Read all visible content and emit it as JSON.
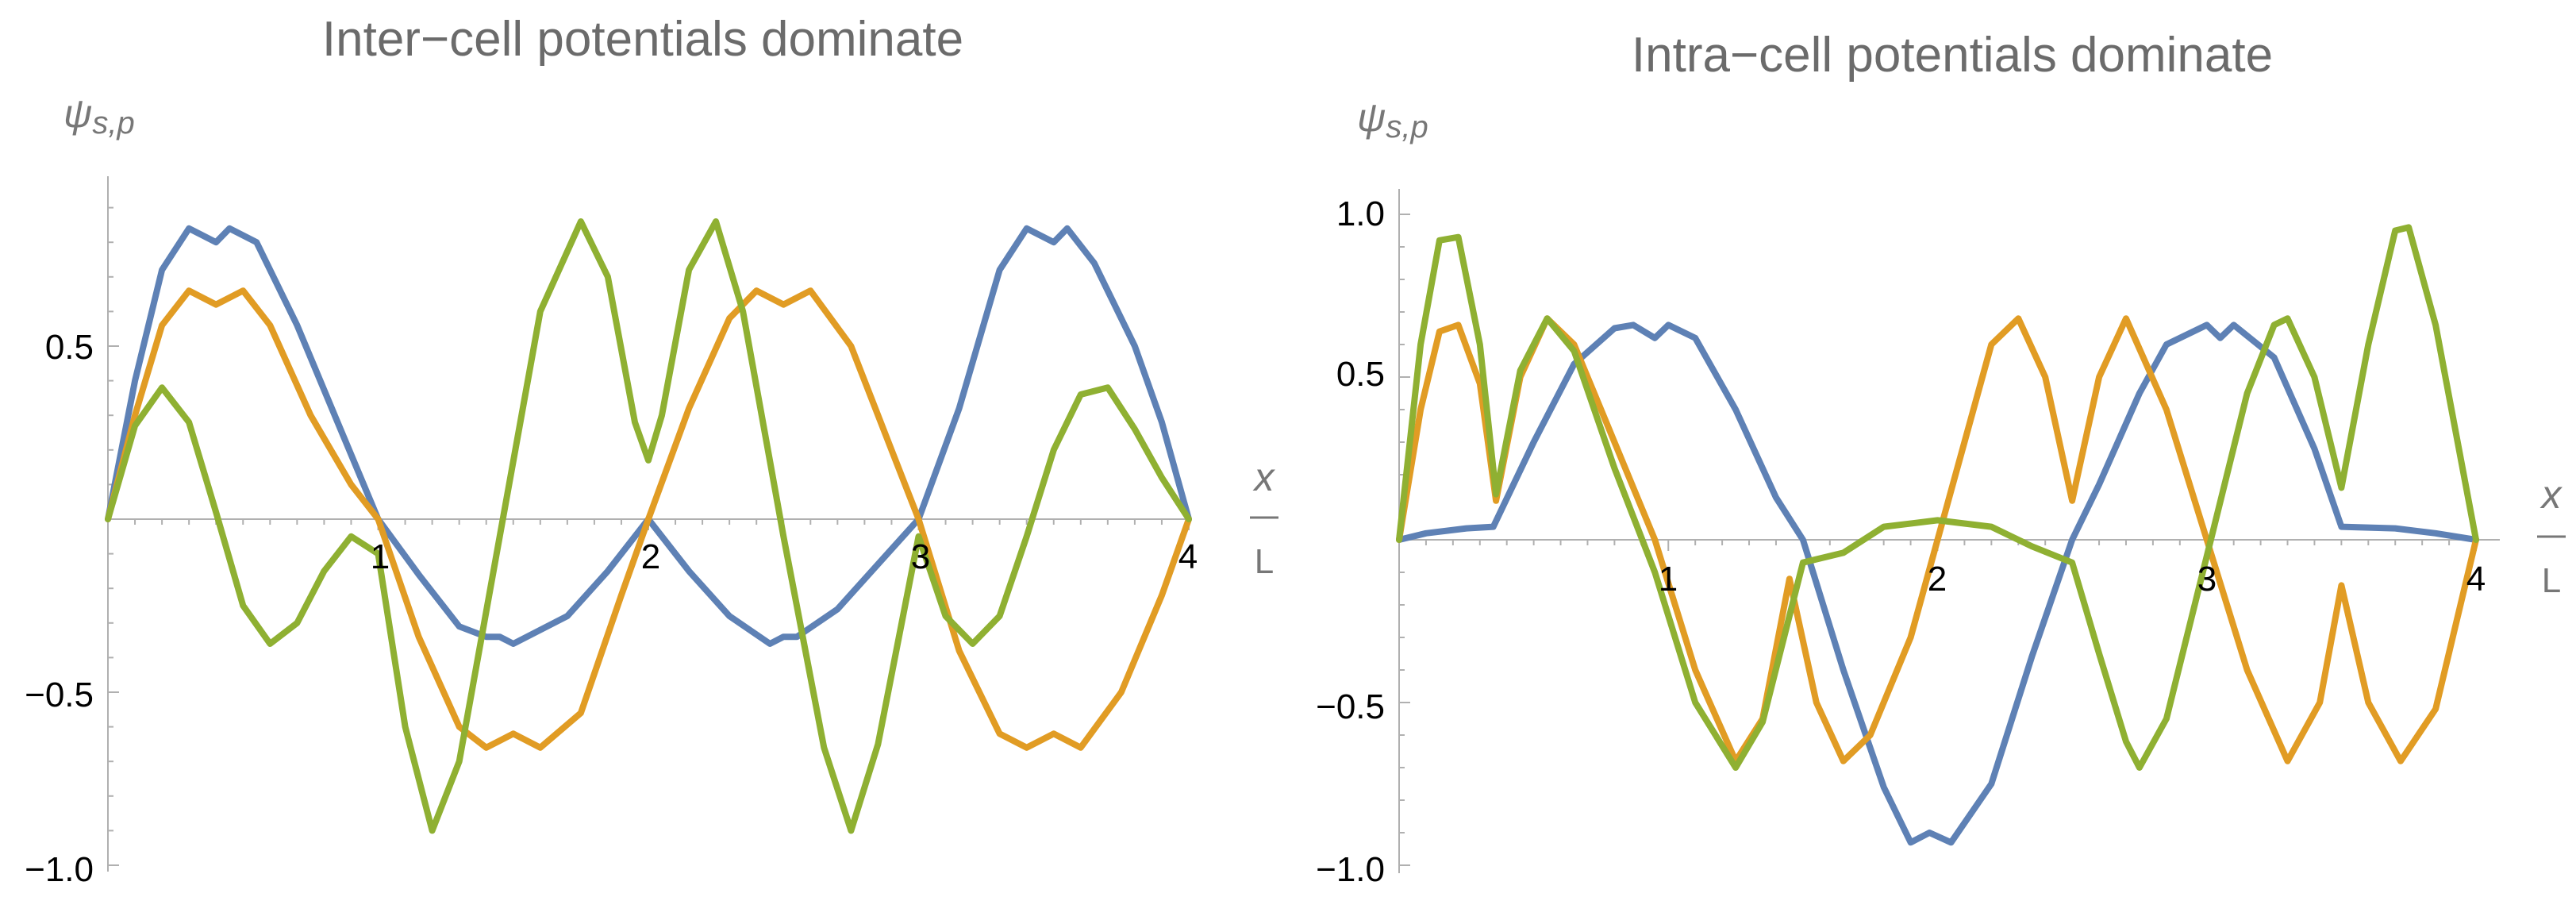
{
  "chart_data": [
    {
      "type": "line",
      "title": "Inter−cell potentials dominate",
      "ylabel": "ψs,p",
      "ylabel_base": "ψ",
      "ylabel_sub": "s,p",
      "xlabel_num": "x",
      "xlabel_den": "L",
      "xlim": [
        0,
        4
      ],
      "ylim": [
        -1.0,
        1.0
      ],
      "x_ticks": [
        {
          "value": 1,
          "label": "1"
        },
        {
          "value": 2,
          "label": "2"
        },
        {
          "value": 3,
          "label": "3"
        },
        {
          "value": 4,
          "label": "4"
        }
      ],
      "y_ticks": [
        {
          "value": 0.5,
          "label": "0.5"
        },
        {
          "value": -0.5,
          "label": "−0.5"
        },
        {
          "value": -1.0,
          "label": "−1.0"
        }
      ],
      "grid": false,
      "series": [
        {
          "color": "#5e81b5",
          "points": [
            [
              0,
              0
            ],
            [
              0.1,
              0.4
            ],
            [
              0.2,
              0.72
            ],
            [
              0.3,
              0.84
            ],
            [
              0.4,
              0.8
            ],
            [
              0.45,
              0.84
            ],
            [
              0.55,
              0.8
            ],
            [
              0.7,
              0.56
            ],
            [
              0.85,
              0.28
            ],
            [
              1.0,
              0.0
            ],
            [
              1.15,
              -0.16
            ],
            [
              1.3,
              -0.31
            ],
            [
              1.4,
              -0.34
            ],
            [
              1.45,
              -0.34
            ],
            [
              1.5,
              -0.36
            ],
            [
              1.7,
              -0.28
            ],
            [
              1.85,
              -0.15
            ],
            [
              2.0,
              0.0
            ],
            [
              2.15,
              -0.15
            ],
            [
              2.3,
              -0.28
            ],
            [
              2.45,
              -0.36
            ],
            [
              2.5,
              -0.34
            ],
            [
              2.55,
              -0.34
            ],
            [
              2.7,
              -0.26
            ],
            [
              2.85,
              -0.13
            ],
            [
              3.0,
              0.0
            ],
            [
              3.15,
              0.32
            ],
            [
              3.3,
              0.72
            ],
            [
              3.4,
              0.84
            ],
            [
              3.5,
              0.8
            ],
            [
              3.55,
              0.84
            ],
            [
              3.65,
              0.74
            ],
            [
              3.8,
              0.5
            ],
            [
              3.9,
              0.28
            ],
            [
              4.0,
              0.0
            ]
          ]
        },
        {
          "color": "#e19c24",
          "points": [
            [
              0,
              0
            ],
            [
              0.1,
              0.3
            ],
            [
              0.2,
              0.56
            ],
            [
              0.3,
              0.66
            ],
            [
              0.4,
              0.62
            ],
            [
              0.5,
              0.66
            ],
            [
              0.6,
              0.56
            ],
            [
              0.75,
              0.3
            ],
            [
              0.9,
              0.1
            ],
            [
              1.0,
              0.0
            ],
            [
              1.15,
              -0.34
            ],
            [
              1.3,
              -0.6
            ],
            [
              1.4,
              -0.66
            ],
            [
              1.5,
              -0.62
            ],
            [
              1.6,
              -0.66
            ],
            [
              1.75,
              -0.56
            ],
            [
              1.9,
              -0.22
            ],
            [
              2.0,
              0.0
            ],
            [
              2.15,
              0.32
            ],
            [
              2.3,
              0.58
            ],
            [
              2.4,
              0.66
            ],
            [
              2.5,
              0.62
            ],
            [
              2.6,
              0.66
            ],
            [
              2.75,
              0.5
            ],
            [
              2.9,
              0.2
            ],
            [
              3.0,
              0.0
            ],
            [
              3.15,
              -0.38
            ],
            [
              3.3,
              -0.62
            ],
            [
              3.4,
              -0.66
            ],
            [
              3.5,
              -0.62
            ],
            [
              3.6,
              -0.66
            ],
            [
              3.75,
              -0.5
            ],
            [
              3.9,
              -0.22
            ],
            [
              4.0,
              0.0
            ]
          ]
        },
        {
          "color": "#8fb032",
          "points": [
            [
              0,
              0
            ],
            [
              0.1,
              0.27
            ],
            [
              0.2,
              0.38
            ],
            [
              0.3,
              0.28
            ],
            [
              0.4,
              0.02
            ],
            [
              0.5,
              -0.25
            ],
            [
              0.6,
              -0.36
            ],
            [
              0.7,
              -0.3
            ],
            [
              0.8,
              -0.15
            ],
            [
              0.9,
              -0.05
            ],
            [
              1.0,
              -0.1
            ],
            [
              1.1,
              -0.6
            ],
            [
              1.2,
              -0.9
            ],
            [
              1.3,
              -0.7
            ],
            [
              1.45,
              -0.05
            ],
            [
              1.6,
              0.6
            ],
            [
              1.75,
              0.86
            ],
            [
              1.85,
              0.7
            ],
            [
              1.95,
              0.28
            ],
            [
              2.0,
              0.17
            ],
            [
              2.05,
              0.3
            ],
            [
              2.15,
              0.72
            ],
            [
              2.25,
              0.86
            ],
            [
              2.35,
              0.6
            ],
            [
              2.5,
              -0.05
            ],
            [
              2.65,
              -0.66
            ],
            [
              2.75,
              -0.9
            ],
            [
              2.85,
              -0.65
            ],
            [
              3.0,
              -0.05
            ],
            [
              3.1,
              -0.28
            ],
            [
              3.2,
              -0.36
            ],
            [
              3.3,
              -0.28
            ],
            [
              3.4,
              -0.05
            ],
            [
              3.5,
              0.2
            ],
            [
              3.6,
              0.36
            ],
            [
              3.7,
              0.38
            ],
            [
              3.8,
              0.26
            ],
            [
              3.9,
              0.12
            ],
            [
              4.0,
              0.0
            ]
          ]
        }
      ]
    },
    {
      "type": "line",
      "title": "Intra−cell potentials dominate",
      "ylabel": "ψs,p",
      "ylabel_base": "ψ",
      "ylabel_sub": "s,p",
      "xlabel_num": "x",
      "xlabel_den": "L",
      "xlim": [
        0,
        4
      ],
      "ylim": [
        -1.0,
        1.0
      ],
      "x_ticks": [
        {
          "value": 1,
          "label": "1"
        },
        {
          "value": 2,
          "label": "2"
        },
        {
          "value": 3,
          "label": "3"
        },
        {
          "value": 4,
          "label": "4"
        }
      ],
      "y_ticks": [
        {
          "value": 1.0,
          "label": "1.0"
        },
        {
          "value": 0.5,
          "label": "0.5"
        },
        {
          "value": -0.5,
          "label": "−0.5"
        },
        {
          "value": -1.0,
          "label": "−1.0"
        }
      ],
      "grid": false,
      "series": [
        {
          "color": "#5e81b5",
          "points": [
            [
              0,
              0
            ],
            [
              0.1,
              0.02
            ],
            [
              0.25,
              0.035
            ],
            [
              0.35,
              0.04
            ],
            [
              0.5,
              0.3
            ],
            [
              0.65,
              0.54
            ],
            [
              0.8,
              0.65
            ],
            [
              0.87,
              0.66
            ],
            [
              0.95,
              0.62
            ],
            [
              1.0,
              0.66
            ],
            [
              1.1,
              0.62
            ],
            [
              1.25,
              0.4
            ],
            [
              1.4,
              0.13
            ],
            [
              1.5,
              0.0
            ],
            [
              1.65,
              -0.4
            ],
            [
              1.8,
              -0.76
            ],
            [
              1.9,
              -0.93
            ],
            [
              1.97,
              -0.9
            ],
            [
              2.05,
              -0.93
            ],
            [
              2.2,
              -0.75
            ],
            [
              2.35,
              -0.36
            ],
            [
              2.5,
              0.0
            ],
            [
              2.6,
              0.17
            ],
            [
              2.75,
              0.45
            ],
            [
              2.85,
              0.6
            ],
            [
              3.0,
              0.66
            ],
            [
              3.05,
              0.62
            ],
            [
              3.1,
              0.66
            ],
            [
              3.25,
              0.56
            ],
            [
              3.4,
              0.28
            ],
            [
              3.5,
              0.04
            ],
            [
              3.7,
              0.035
            ],
            [
              3.85,
              0.02
            ],
            [
              4.0,
              0.0
            ]
          ]
        },
        {
          "color": "#e19c24",
          "points": [
            [
              0,
              0
            ],
            [
              0.08,
              0.4
            ],
            [
              0.15,
              0.64
            ],
            [
              0.22,
              0.66
            ],
            [
              0.3,
              0.48
            ],
            [
              0.36,
              0.12
            ],
            [
              0.45,
              0.5
            ],
            [
              0.55,
              0.68
            ],
            [
              0.65,
              0.6
            ],
            [
              0.8,
              0.3
            ],
            [
              0.95,
              0.0
            ],
            [
              1.1,
              -0.4
            ],
            [
              1.25,
              -0.68
            ],
            [
              1.35,
              -0.55
            ],
            [
              1.45,
              -0.12
            ],
            [
              1.55,
              -0.5
            ],
            [
              1.65,
              -0.68
            ],
            [
              1.75,
              -0.6
            ],
            [
              1.9,
              -0.3
            ],
            [
              2.0,
              0.0
            ],
            [
              2.1,
              0.3
            ],
            [
              2.2,
              0.6
            ],
            [
              2.3,
              0.68
            ],
            [
              2.4,
              0.5
            ],
            [
              2.5,
              0.12
            ],
            [
              2.6,
              0.5
            ],
            [
              2.7,
              0.68
            ],
            [
              2.85,
              0.4
            ],
            [
              3.0,
              0.0
            ],
            [
              3.15,
              -0.4
            ],
            [
              3.3,
              -0.68
            ],
            [
              3.42,
              -0.5
            ],
            [
              3.5,
              -0.14
            ],
            [
              3.6,
              -0.5
            ],
            [
              3.72,
              -0.68
            ],
            [
              3.85,
              -0.52
            ],
            [
              4.0,
              0.0
            ]
          ]
        },
        {
          "color": "#8fb032",
          "points": [
            [
              0,
              0
            ],
            [
              0.08,
              0.6
            ],
            [
              0.15,
              0.92
            ],
            [
              0.22,
              0.93
            ],
            [
              0.3,
              0.6
            ],
            [
              0.36,
              0.14
            ],
            [
              0.45,
              0.52
            ],
            [
              0.55,
              0.68
            ],
            [
              0.65,
              0.58
            ],
            [
              0.8,
              0.22
            ],
            [
              0.95,
              -0.1
            ],
            [
              1.1,
              -0.5
            ],
            [
              1.25,
              -0.7
            ],
            [
              1.35,
              -0.56
            ],
            [
              1.5,
              -0.07
            ],
            [
              1.65,
              -0.04
            ],
            [
              1.8,
              0.04
            ],
            [
              2.0,
              0.06
            ],
            [
              2.2,
              0.04
            ],
            [
              2.35,
              -0.02
            ],
            [
              2.5,
              -0.07
            ],
            [
              2.6,
              -0.35
            ],
            [
              2.7,
              -0.62
            ],
            [
              2.75,
              -0.7
            ],
            [
              2.85,
              -0.55
            ],
            [
              3.0,
              -0.05
            ],
            [
              3.15,
              0.45
            ],
            [
              3.25,
              0.66
            ],
            [
              3.3,
              0.68
            ],
            [
              3.4,
              0.5
            ],
            [
              3.5,
              0.16
            ],
            [
              3.6,
              0.6
            ],
            [
              3.7,
              0.95
            ],
            [
              3.75,
              0.96
            ],
            [
              3.85,
              0.66
            ],
            [
              4.0,
              0.0
            ]
          ]
        }
      ]
    }
  ]
}
